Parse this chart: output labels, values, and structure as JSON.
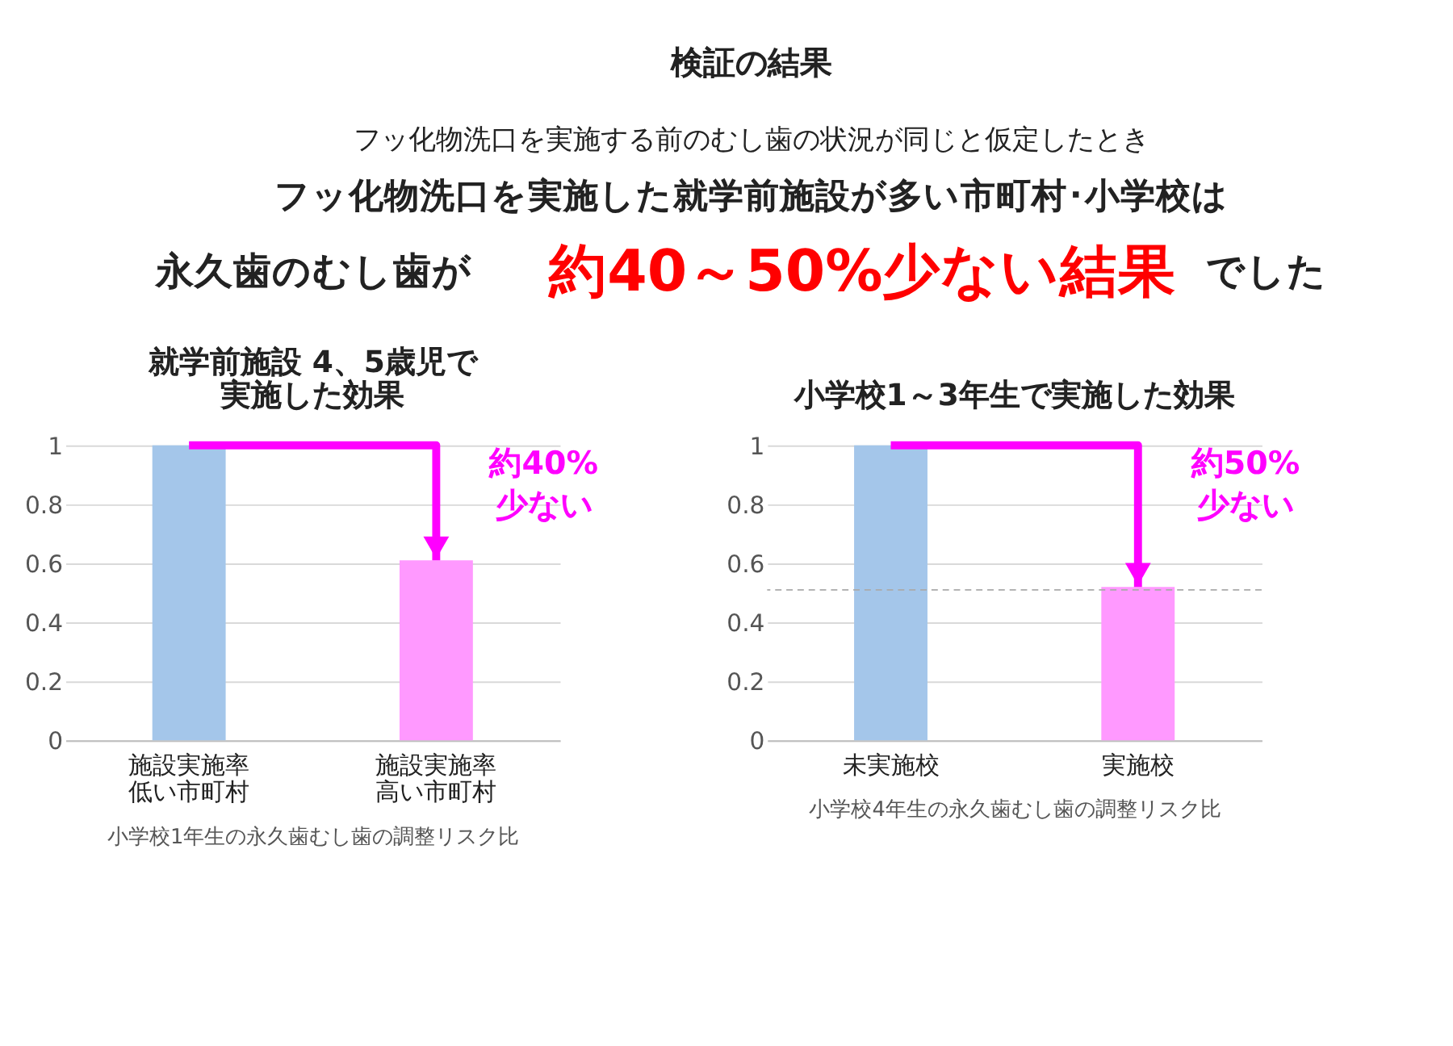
{
  "chart_data": [
    {
      "type": "other",
      "title": "検証の結果",
      "annotations": [
        "フッ化物洗口を実施する前のむし歯の状況が同じと仮定したとき",
        "フッ化物洗口を実施した就学前施設が多い市町村･小学校は",
        "永久歯のむし歯が",
        "約40～50%少ない結果",
        "でした"
      ]
    },
    {
      "type": "bar",
      "title": "就学前施設 4、5歳児で実施した効果",
      "categories": [
        "施設実施率低い市町村",
        "施設実施率高い市町村"
      ],
      "values": [
        1,
        0.61
      ],
      "colors": [
        "#a4c6ea",
        "#ff99ff"
      ],
      "ylim": [
        0,
        1
      ],
      "yticks": [
        0,
        0.2,
        0.4,
        0.6,
        0.8,
        1
      ],
      "grid": "y",
      "xlabel": "小学校1年生の永久歯むし歯の調整リスク比",
      "annotations": [
        "約40%少ない"
      ]
    },
    {
      "type": "bar",
      "title": "小学校1～3年生で実施した効果",
      "categories": [
        "未実施校",
        "実施校"
      ],
      "values": [
        1,
        0.52
      ],
      "colors": [
        "#a4c6ea",
        "#ff99ff"
      ],
      "ylim": [
        0,
        1
      ],
      "yticks": [
        0,
        0.2,
        0.4,
        0.6,
        0.8,
        1
      ],
      "grid": "y",
      "xlabel": "小学校4年生の永久歯むし歯の調整リスク比",
      "annotations": [
        "約50%少ない"
      ],
      "ref_lines": [
        {
          "axis": "y",
          "value": 0.51,
          "color": "#aaaaaa",
          "line_style": "dashed"
        }
      ]
    }
  ]
}
